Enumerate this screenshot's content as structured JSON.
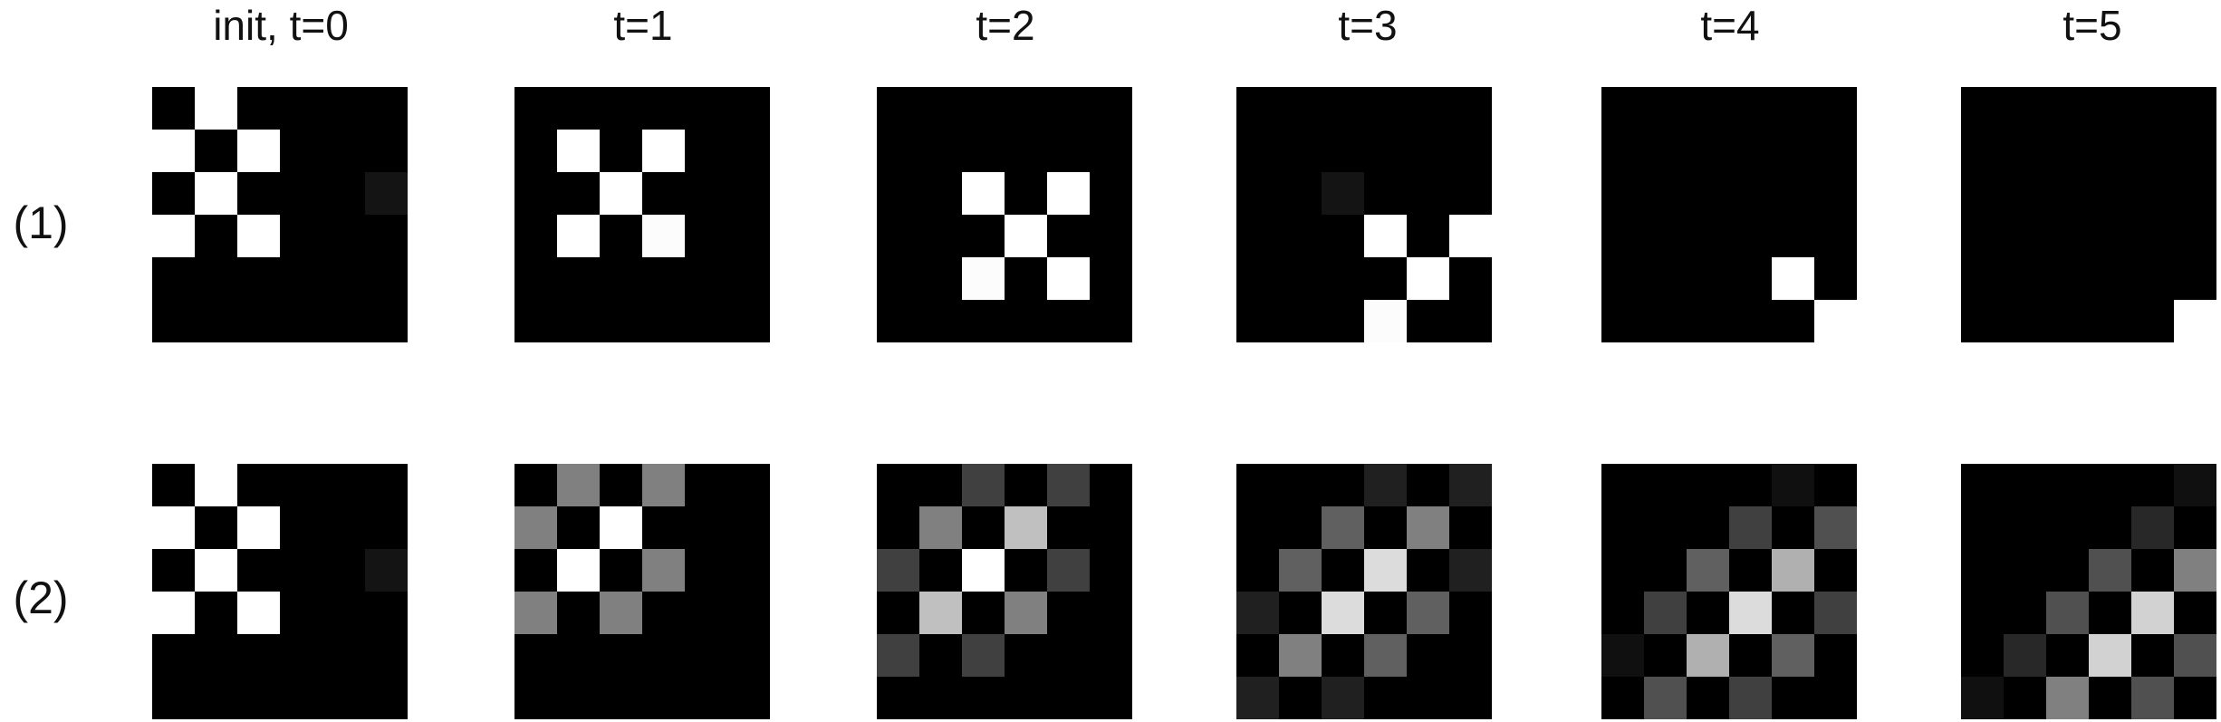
{
  "column_titles": [
    "init, t=0",
    "t=1",
    "t=2",
    "t=3",
    "t=4",
    "t=5"
  ],
  "row_labels": [
    "(1)",
    "(2)"
  ],
  "grid_size": 6,
  "rows": [
    [
      [
        [
          0,
          255,
          0,
          0,
          0,
          0
        ],
        [
          255,
          0,
          255,
          0,
          0,
          0
        ],
        [
          0,
          255,
          0,
          0,
          0,
          20
        ],
        [
          255,
          0,
          255,
          0,
          0,
          0
        ],
        [
          0,
          0,
          0,
          0,
          0,
          0
        ],
        [
          0,
          0,
          0,
          0,
          0,
          0
        ]
      ],
      [
        [
          0,
          0,
          0,
          0,
          0,
          0
        ],
        [
          0,
          255,
          0,
          255,
          0,
          0
        ],
        [
          0,
          0,
          255,
          0,
          0,
          0
        ],
        [
          0,
          255,
          0,
          252,
          0,
          0
        ],
        [
          0,
          0,
          0,
          0,
          0,
          0
        ],
        [
          0,
          0,
          0,
          0,
          0,
          0
        ]
      ],
      [
        [
          0,
          0,
          0,
          0,
          0,
          0
        ],
        [
          0,
          0,
          0,
          0,
          0,
          0
        ],
        [
          0,
          0,
          255,
          0,
          255,
          0
        ],
        [
          0,
          0,
          0,
          255,
          0,
          0
        ],
        [
          0,
          0,
          252,
          0,
          255,
          0
        ],
        [
          0,
          0,
          0,
          0,
          0,
          0
        ]
      ],
      [
        [
          0,
          0,
          0,
          0,
          0,
          0
        ],
        [
          0,
          0,
          0,
          0,
          0,
          0
        ],
        [
          0,
          0,
          20,
          0,
          0,
          0
        ],
        [
          0,
          0,
          0,
          255,
          0,
          255
        ],
        [
          0,
          0,
          0,
          0,
          255,
          0
        ],
        [
          0,
          0,
          0,
          252,
          0,
          0
        ]
      ],
      [
        [
          0,
          0,
          0,
          0,
          0,
          0
        ],
        [
          0,
          0,
          0,
          0,
          0,
          0
        ],
        [
          0,
          0,
          0,
          0,
          0,
          0
        ],
        [
          0,
          0,
          0,
          0,
          0,
          0
        ],
        [
          0,
          0,
          0,
          0,
          255,
          0
        ],
        [
          0,
          0,
          0,
          0,
          0,
          255
        ]
      ],
      [
        [
          0,
          0,
          0,
          0,
          0,
          0
        ],
        [
          0,
          0,
          0,
          0,
          0,
          0
        ],
        [
          0,
          0,
          0,
          0,
          0,
          0
        ],
        [
          0,
          0,
          0,
          0,
          0,
          0
        ],
        [
          0,
          0,
          0,
          0,
          0,
          0
        ],
        [
          0,
          0,
          0,
          0,
          0,
          255
        ]
      ]
    ],
    [
      [
        [
          0,
          255,
          0,
          0,
          0,
          0
        ],
        [
          255,
          0,
          255,
          0,
          0,
          0
        ],
        [
          0,
          255,
          0,
          0,
          0,
          20
        ],
        [
          255,
          0,
          255,
          0,
          0,
          0
        ],
        [
          0,
          0,
          0,
          0,
          0,
          0
        ],
        [
          0,
          0,
          0,
          0,
          0,
          0
        ]
      ],
      [
        [
          0,
          128,
          0,
          128,
          0,
          0
        ],
        [
          128,
          0,
          255,
          0,
          0,
          0
        ],
        [
          0,
          255,
          0,
          128,
          0,
          0
        ],
        [
          128,
          0,
          128,
          0,
          0,
          0
        ],
        [
          0,
          0,
          0,
          0,
          0,
          0
        ],
        [
          0,
          0,
          0,
          0,
          0,
          0
        ]
      ],
      [
        [
          0,
          0,
          64,
          0,
          64,
          0
        ],
        [
          0,
          128,
          0,
          192,
          0,
          0
        ],
        [
          64,
          0,
          255,
          0,
          64,
          0
        ],
        [
          0,
          192,
          0,
          128,
          0,
          0
        ],
        [
          64,
          0,
          64,
          0,
          0,
          0
        ],
        [
          0,
          0,
          0,
          0,
          0,
          0
        ]
      ],
      [
        [
          0,
          0,
          0,
          32,
          0,
          32
        ],
        [
          0,
          0,
          96,
          0,
          128,
          0
        ],
        [
          0,
          96,
          0,
          220,
          0,
          32
        ],
        [
          32,
          0,
          220,
          0,
          96,
          0
        ],
        [
          0,
          128,
          0,
          96,
          0,
          0
        ],
        [
          32,
          0,
          32,
          0,
          0,
          0
        ]
      ],
      [
        [
          0,
          0,
          0,
          0,
          16,
          0
        ],
        [
          0,
          0,
          0,
          64,
          0,
          80
        ],
        [
          0,
          0,
          96,
          0,
          176,
          0
        ],
        [
          0,
          64,
          0,
          220,
          0,
          64
        ],
        [
          16,
          0,
          176,
          0,
          96,
          0
        ],
        [
          0,
          80,
          0,
          64,
          0,
          0
        ]
      ],
      [
        [
          0,
          0,
          0,
          0,
          0,
          16
        ],
        [
          0,
          0,
          0,
          0,
          40,
          0
        ],
        [
          0,
          0,
          0,
          80,
          0,
          128
        ],
        [
          0,
          0,
          80,
          0,
          210,
          0
        ],
        [
          0,
          40,
          0,
          210,
          0,
          80
        ],
        [
          16,
          0,
          128,
          0,
          80,
          0
        ]
      ]
    ]
  ]
}
